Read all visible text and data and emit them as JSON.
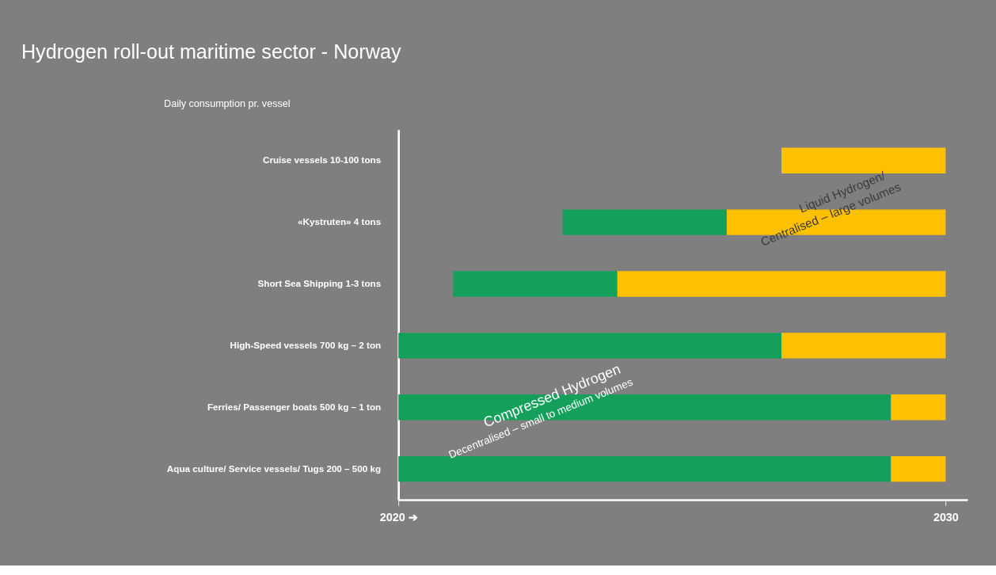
{
  "chart_data": {
    "type": "bar",
    "orientation": "horizontal",
    "title": "Hydrogen roll-out maritime sector - Norway",
    "ylabel": "Daily consumption pr. vessel",
    "categories": [
      "Cruise vessels  10-100 tons",
      "«Kystruten»  4 tons",
      "Short Sea Shipping  1-3 tons",
      "High-Speed vessels  700 kg – 2 ton",
      "Ferries/ Passenger boats  500 kg – 1 ton",
      "Aqua culture/ Service vessels/ Tugs  200 – 500 kg"
    ],
    "series": [
      {
        "color": "#14a05a",
        "base": [
          null,
          2023,
          2021,
          2020,
          2020,
          2020
        ],
        "values": [
          null,
          3,
          3,
          7,
          9,
          9
        ]
      },
      {
        "color": "#ffc000",
        "base": [
          2027,
          2026,
          2024,
          2027,
          2029,
          2029
        ],
        "values": [
          3,
          4,
          6,
          3,
          1,
          1
        ]
      }
    ],
    "grid": false,
    "legend": false,
    "xlim": [
      2020,
      2030.4
    ],
    "xticks": [
      {
        "value": 2020,
        "label": "2020 ➔"
      },
      2030
    ],
    "annotations": [
      "Compressed Hydrogen",
      "Decentralised – small to medium volumes",
      "Liquid Hydrogen/",
      "Centralised – large volumes"
    ]
  }
}
